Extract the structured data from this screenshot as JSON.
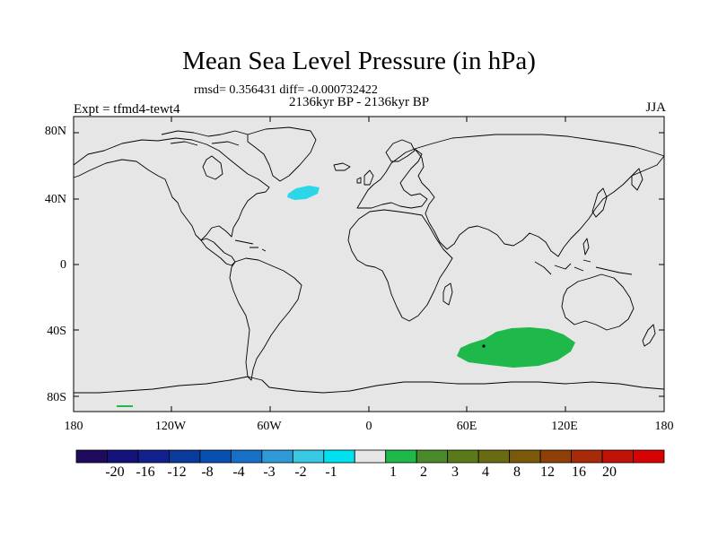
{
  "title": "Mean Sea Level Pressure (in hPa)",
  "stats": "rmsd= 0.356431  diff= -0.000732422",
  "period": "2136kyr BP - 2136kyr BP",
  "experiment": "Expt = tfmd4-tewt4",
  "season": "JJA",
  "lat_labels": [
    "80N",
    "40N",
    "0",
    "40S",
    "80S"
  ],
  "lon_labels": [
    "180",
    "120W",
    "60W",
    "0",
    "60E",
    "120E",
    "180"
  ],
  "colorbar": {
    "colors": [
      "#1f0a5e",
      "#12127a",
      "#10208c",
      "#0a3a9c",
      "#0850b0",
      "#1670c8",
      "#2e9ad8",
      "#39c8e4",
      "#00e1ef",
      "#e6e6e6",
      "#1fb84a",
      "#4a8a2a",
      "#5a7a1a",
      "#6a6a12",
      "#7a5a0a",
      "#8e4008",
      "#a82a08",
      "#c01206",
      "#d80202"
    ],
    "labels": [
      "-20",
      "-16",
      "-12",
      "-8",
      "-4",
      "-3",
      "-2",
      "-1",
      "1",
      "2",
      "3",
      "4",
      "8",
      "12",
      "16",
      "20"
    ]
  },
  "colors": {
    "ocean_neutral": "#e6e6e6",
    "negative_anomaly": "#2bd7e6",
    "positive_anomaly": "#1fb84a",
    "coastline": "#000000"
  },
  "map_data": {
    "variable": "Mean Sea Level Pressure anomaly (hPa)",
    "lon_range": [
      -180,
      180
    ],
    "lat_range": [
      -90,
      90
    ],
    "anomaly_regions": [
      {
        "name": "North Atlantic",
        "sign": "negative",
        "range": "-2 to -1",
        "lon": [
          -30,
          -40
        ],
        "lat": [
          40,
          48
        ]
      },
      {
        "name": "Southern Indian Ocean",
        "sign": "positive",
        "range": "1 to 2",
        "lon": [
          45,
          115
        ],
        "lat": [
          -38,
          -58
        ]
      }
    ]
  }
}
